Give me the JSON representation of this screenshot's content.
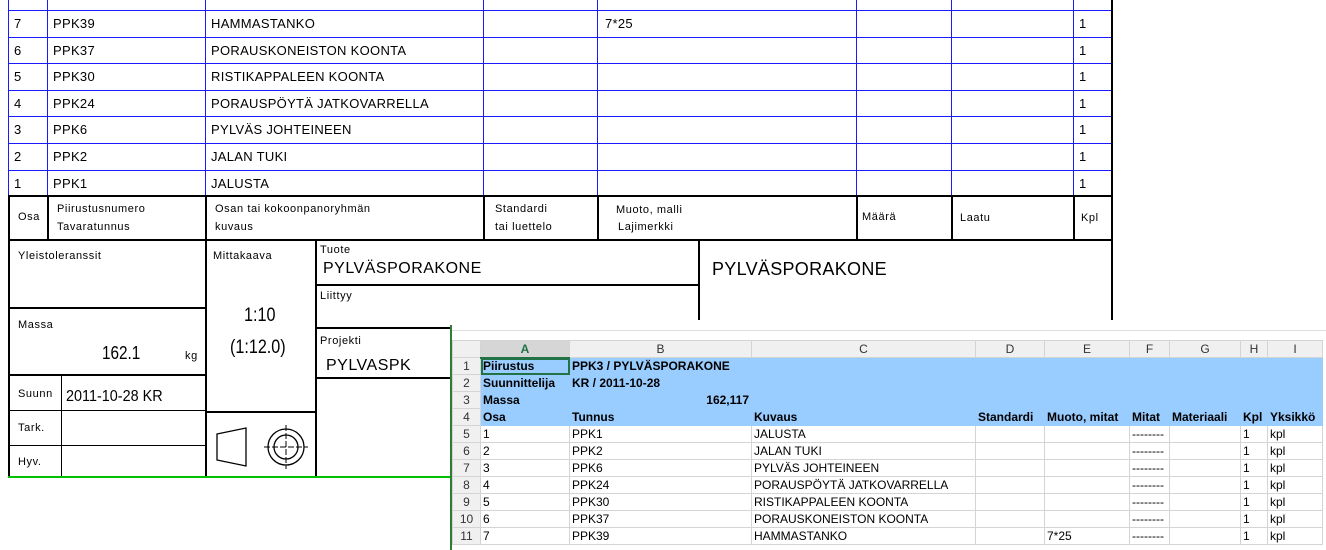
{
  "parts_list": {
    "rows": [
      {
        "osa": "7",
        "tunnus": "PPK39",
        "kuvaus": "HAMMASTANKO",
        "muoto": "7*25",
        "kpl": "1"
      },
      {
        "osa": "6",
        "tunnus": "PPK37",
        "kuvaus": "PORAUSKONEISTON KOONTA",
        "muoto": "",
        "kpl": "1"
      },
      {
        "osa": "5",
        "tunnus": "PPK30",
        "kuvaus": "RISTIKAPPALEEN KOONTA",
        "muoto": "",
        "kpl": "1"
      },
      {
        "osa": "4",
        "tunnus": "PPK24",
        "kuvaus": "PORAUSPÖYTÄ JATKOVARRELLA",
        "muoto": "",
        "kpl": "1"
      },
      {
        "osa": "3",
        "tunnus": "PPK6",
        "kuvaus": "PYLVÄS JOHTEINEEN",
        "muoto": "",
        "kpl": "1"
      },
      {
        "osa": "2",
        "tunnus": "PPK2",
        "kuvaus": "JALAN TUKI",
        "muoto": "",
        "kpl": "1"
      },
      {
        "osa": "1",
        "tunnus": "PPK1",
        "kuvaus": "JALUSTA",
        "muoto": "",
        "kpl": "1"
      }
    ],
    "headers": {
      "osa": "Osa",
      "piirustus1": "Piirustusnumero",
      "piirustus2": "Tavaratunnus",
      "osan1": "Osan tai kokoonpanoryhmän",
      "osan2": "kuvaus",
      "std1": "Standardi",
      "std2": "tai luettelo",
      "muoto1": "Muoto, malli",
      "muoto2": "Lajimerkki",
      "maara": "Määrä",
      "laatu": "Laatu",
      "kpl": "Kpl"
    }
  },
  "title_block": {
    "yleistoleranssit": "Yleistoleranssit",
    "massa_label": "Massa",
    "massa": "162.1",
    "massa_unit": "kg",
    "suunn_label": "Suunn",
    "suunn": "2011-10-28 KR",
    "tark": "Tark.",
    "hyv": "Hyv.",
    "mittakaava_label": "Mittakaava",
    "scale": "1:10",
    "scale2": "(1:12.0)",
    "tuote_label": "Tuote",
    "tuote": "PYLVÄSPORAKONE",
    "liittyy": "Liittyy",
    "projekti_label": "Projekti",
    "projekti": "PYLVASPK",
    "title": "PYLVÄSPORAKONE"
  },
  "spreadsheet": {
    "columns": [
      "A",
      "B",
      "C",
      "D",
      "E",
      "F",
      "G",
      "H",
      "I"
    ],
    "selected_cell": "A1",
    "rows": [
      [
        "1",
        "Piirustus",
        "PPK3 / PYLVÄSPORAKONE",
        "",
        "",
        "",
        "",
        "",
        "",
        ""
      ],
      [
        "2",
        "Suunnittelija",
        "KR / 2011-10-28",
        "",
        "",
        "",
        "",
        "",
        "",
        ""
      ],
      [
        "3",
        "Massa",
        "162,117",
        "",
        "",
        "",
        "",
        "",
        "",
        ""
      ],
      [
        "4",
        "Osa",
        "Tunnus",
        "Kuvaus",
        "Standardi",
        "Muoto, mitat",
        "Mitat",
        "Materiaali",
        "Kpl",
        "Yksikkö"
      ],
      [
        "5",
        "1",
        "PPK1",
        "JALUSTA",
        "",
        "",
        "--------",
        "",
        "1",
        "kpl"
      ],
      [
        "6",
        "2",
        "PPK2",
        "JALAN TUKI",
        "",
        "",
        "--------",
        "",
        "1",
        "kpl"
      ],
      [
        "7",
        "3",
        "PPK6",
        "PYLVÄS JOHTEINEEN",
        "",
        "",
        "--------",
        "",
        "1",
        "kpl"
      ],
      [
        "8",
        "4",
        "PPK24",
        "PORAUSPÖYTÄ JATKOVARRELLA",
        "",
        "",
        "--------",
        "",
        "1",
        "kpl"
      ],
      [
        "9",
        "5",
        "PPK30",
        "RISTIKAPPALEEN KOONTA",
        "",
        "",
        "--------",
        "",
        "1",
        "kpl"
      ],
      [
        "10",
        "6",
        "PPK37",
        "PORAUSKONEISTON KOONTA",
        "",
        "",
        "--------",
        "",
        "1",
        "kpl"
      ],
      [
        "11",
        "7",
        "PPK39",
        "HAMMASTANKO",
        "",
        "7*25",
        "--------",
        "",
        "1",
        "kpl"
      ]
    ]
  }
}
